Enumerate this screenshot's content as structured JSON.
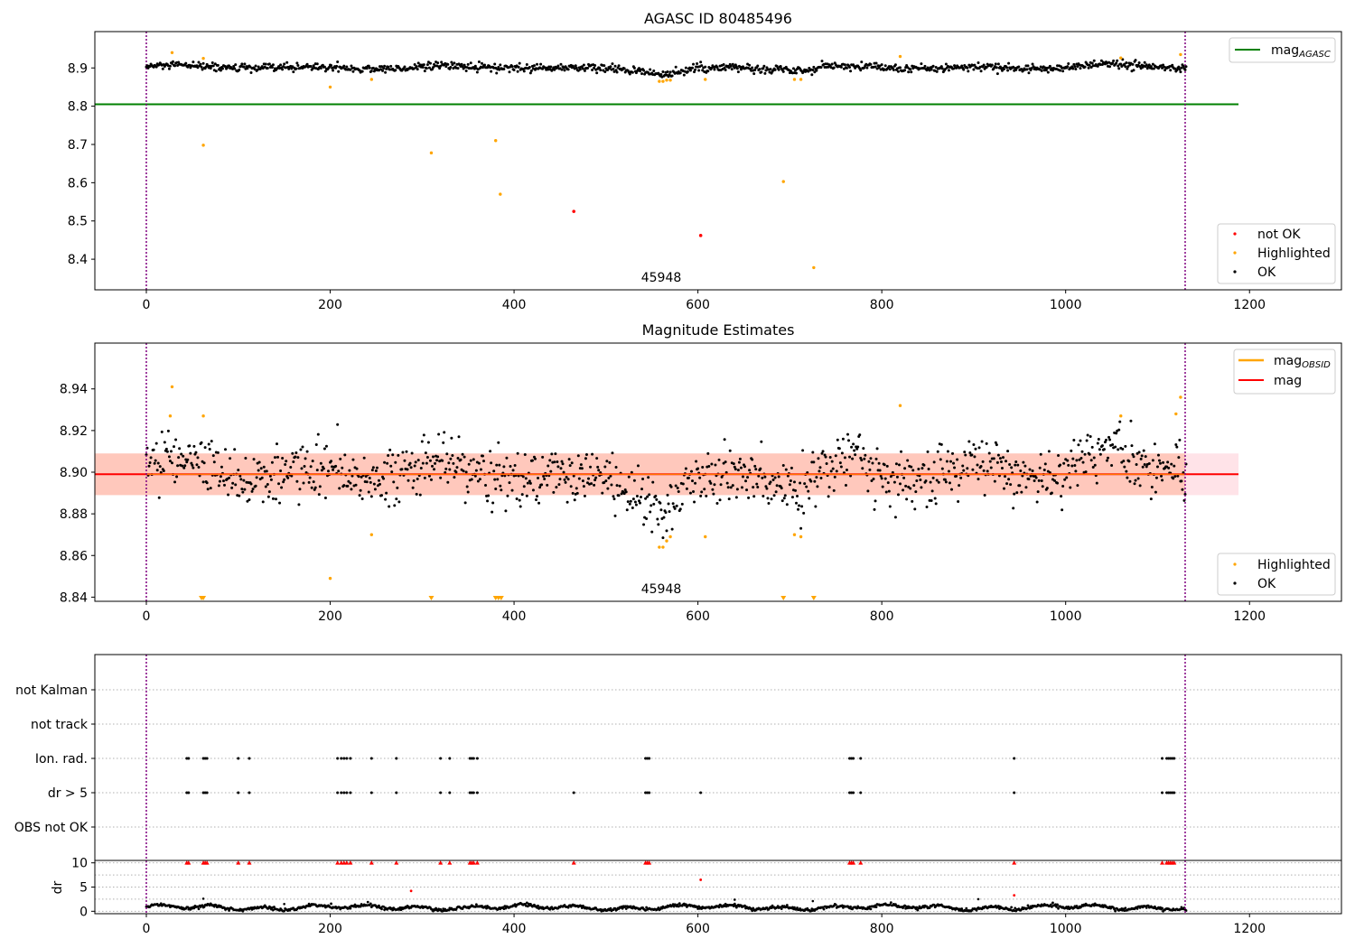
{
  "chart_data": [
    {
      "type": "scatter",
      "title": "AGASC ID 80485496",
      "annotation": "45948",
      "xlim": [
        -56,
        1300
      ],
      "ylim": [
        8.32,
        8.995
      ],
      "xticks": [
        0,
        200,
        400,
        600,
        800,
        1000,
        1200
      ],
      "yticks": [
        8.4,
        8.5,
        8.6,
        8.7,
        8.8,
        8.9
      ],
      "vlines": [
        0,
        1130
      ],
      "reference_lines": [
        {
          "name": "mag",
          "subscript": "AGASC",
          "value": 8.805,
          "x_range": [
            -56,
            1188
          ],
          "color": "#008000"
        }
      ],
      "legend_lines": [
        {
          "name": "mag",
          "subscript": "AGASC",
          "color": "#008000"
        }
      ],
      "legend_markers": [
        {
          "name": "not OK",
          "color": "#ff0000"
        },
        {
          "name": "Highlighted",
          "color": "#ffa500"
        },
        {
          "name": "OK",
          "color": "#000000"
        }
      ],
      "ok_series": {
        "name": "OK",
        "color": "#000000",
        "n_points": 1132,
        "x_range": [
          0,
          1131
        ],
        "level": 8.9,
        "spread": 0.012
      },
      "highlighted_points": [
        [
          28,
          8.94
        ],
        [
          62,
          8.925
        ],
        [
          62,
          8.698
        ],
        [
          200,
          8.85
        ],
        [
          245,
          8.87
        ],
        [
          310,
          8.678
        ],
        [
          380,
          8.71
        ],
        [
          385,
          8.57
        ],
        [
          558,
          8.865
        ],
        [
          562,
          8.865
        ],
        [
          566,
          8.868
        ],
        [
          570,
          8.868
        ],
        [
          608,
          8.87
        ],
        [
          693,
          8.603
        ],
        [
          705,
          8.87
        ],
        [
          712,
          8.87
        ],
        [
          726,
          8.378
        ],
        [
          820,
          8.93
        ],
        [
          1060,
          8.926
        ],
        [
          1125,
          8.935
        ]
      ],
      "not_ok_points": [
        [
          465,
          8.525
        ],
        [
          603,
          8.462
        ]
      ]
    },
    {
      "type": "scatter",
      "title": "Magnitude Estimates",
      "annotation": "45948",
      "xlim": [
        -56,
        1300
      ],
      "ylim": [
        8.838,
        8.962
      ],
      "xticks": [
        0,
        200,
        400,
        600,
        800,
        1000,
        1200
      ],
      "yticks": [
        8.84,
        8.86,
        8.88,
        8.9,
        8.92,
        8.94
      ],
      "vlines": [
        0,
        1130
      ],
      "bands": [
        {
          "low": 8.889,
          "high": 8.909,
          "x_range": [
            -56,
            1188
          ],
          "color": "#ffc0cb",
          "opacity": 0.45
        },
        {
          "low": 8.889,
          "high": 8.909,
          "x_range": [
            -56,
            1130
          ],
          "color": "#ffa07a",
          "opacity": 0.4
        }
      ],
      "reference_lines": [
        {
          "name": "mag",
          "value": 8.899,
          "x_range": [
            -56,
            1188
          ],
          "color": "#ff0000"
        }
      ],
      "legend_lines": [
        {
          "name": "mag",
          "subscript": "OBSID",
          "color": "#ffa500"
        },
        {
          "name": "mag",
          "color": "#ff0000"
        }
      ],
      "legend_markers": [
        {
          "name": "Highlighted",
          "color": "#ffa500"
        },
        {
          "name": "OK",
          "color": "#000000"
        }
      ],
      "ok_series": {
        "name": "OK",
        "color": "#000000",
        "n_points": 1132,
        "x_range": [
          0,
          1131
        ],
        "level": 8.899,
        "spread": 0.012
      },
      "highlighted_points": [
        [
          26,
          8.927
        ],
        [
          28,
          8.941
        ],
        [
          62,
          8.927
        ],
        [
          245,
          8.87
        ],
        [
          200,
          8.849
        ],
        [
          558,
          8.864
        ],
        [
          562,
          8.864
        ],
        [
          566,
          8.867
        ],
        [
          570,
          8.869
        ],
        [
          608,
          8.869
        ],
        [
          705,
          8.87
        ],
        [
          712,
          8.869
        ],
        [
          820,
          8.932
        ],
        [
          1060,
          8.927
        ],
        [
          1120,
          8.928
        ],
        [
          1125,
          8.936
        ]
      ],
      "off_scale_markers": [
        60,
        62,
        310,
        380,
        383,
        386,
        693,
        726
      ]
    },
    {
      "type": "scatter",
      "xlim": [
        -56,
        1300
      ],
      "xticks": [
        0,
        200,
        400,
        600,
        800,
        1000,
        1200
      ],
      "vlines": [
        0,
        1130
      ],
      "flag_rows": [
        "not Kalman",
        "not track",
        "Ion. rad.",
        "dr > 5",
        "OBS not OK"
      ],
      "flags": {
        "Ion. rad.": [
          44,
          46,
          62,
          64,
          66,
          100,
          112,
          208,
          212,
          215,
          218,
          222,
          245,
          272,
          320,
          330,
          352,
          354,
          356,
          360,
          543,
          545,
          547,
          765,
          767,
          769,
          777,
          944,
          1105,
          1110,
          1112,
          1114,
          1116,
          1118
        ],
        "dr > 5": [
          44,
          46,
          62,
          64,
          66,
          100,
          112,
          208,
          212,
          215,
          218,
          222,
          245,
          272,
          320,
          330,
          352,
          354,
          356,
          360,
          465,
          543,
          545,
          547,
          603,
          765,
          767,
          769,
          777,
          944,
          1105,
          1110,
          1112,
          1114,
          1116,
          1118
        ]
      },
      "dr": {
        "ylabel": "dr",
        "ylim": [
          -0.5,
          10.5
        ],
        "yticks": [
          0,
          5,
          10
        ],
        "cap": 10,
        "capped_x": [
          44,
          46,
          62,
          64,
          66,
          100,
          112,
          208,
          212,
          215,
          218,
          222,
          245,
          272,
          320,
          330,
          352,
          354,
          356,
          360,
          465,
          543,
          545,
          547,
          765,
          767,
          769,
          777,
          944,
          1105,
          1110,
          1112,
          1114,
          1116,
          1118
        ],
        "outliers": [
          [
            288,
            4.2
          ],
          [
            603,
            6.5
          ],
          [
            944,
            3.3
          ],
          [
            62,
            2.6
          ],
          [
            640,
            2.4
          ],
          [
            905,
            2.5
          ],
          [
            725,
            2.1
          ],
          [
            150,
            1.5
          ]
        ],
        "ok_series": {
          "n_points": 1132,
          "x_range": [
            0,
            1131
          ],
          "level": 0.8,
          "spread": 0.5
        }
      }
    }
  ]
}
